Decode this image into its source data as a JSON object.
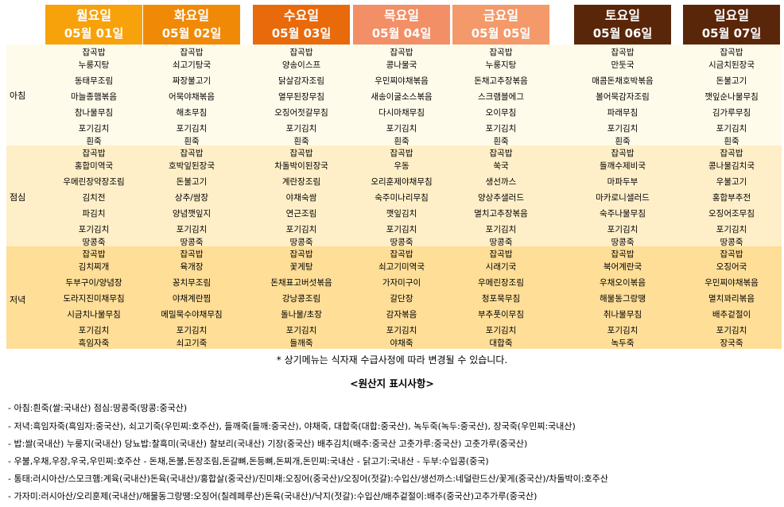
{
  "days": [
    {
      "day": "월요일",
      "date": "05월 01일",
      "header_bg": "#F7A20B"
    },
    {
      "day": "화요일",
      "date": "05월 02일",
      "header_bg": "#F08A06"
    },
    {
      "day": "수요일",
      "date": "05월 03일",
      "header_bg": "#E96A0A"
    },
    {
      "day": "목요일",
      "date": "05월 04일",
      "header_bg": "#F38F66"
    },
    {
      "day": "금요일",
      "date": "05월 05일",
      "header_bg": "#F4996A"
    },
    {
      "day": "토요일",
      "date": "05월 06일",
      "header_bg": "#5A260A"
    },
    {
      "day": "일요일",
      "date": "05월 07일",
      "header_bg": "#5A260A"
    }
  ],
  "meals": [
    {
      "label": "아침",
      "bg": "#FFFBEA",
      "items": [
        [
          "잡곡밥",
          "누룽지탕",
          "동태무조림",
          "마늘종햄볶음",
          "참나물무침",
          "포기김치",
          "흰죽"
        ],
        [
          "잡곡밥",
          "쇠고기탕국",
          "짜장불고기",
          "어묵야채볶음",
          "해초무침",
          "포기김치",
          "흰죽"
        ],
        [
          "잡곡밥",
          "양송이스프",
          "닭살감자조림",
          "열무된장무침",
          "오징어젓갈무침",
          "포기김치",
          "흰죽"
        ],
        [
          "잡곡밥",
          "콩나물국",
          "우민찌야채볶음",
          "새송이굴소스볶음",
          "다시마채무침",
          "포기김치",
          "흰죽"
        ],
        [
          "잡곡밥",
          "누룽지탕",
          "돈채고추장볶음",
          "스크램블에그",
          "오이무침",
          "포기김치",
          "흰죽"
        ],
        [
          "잡곡밥",
          "만둣국",
          "매콤돈채호박볶음",
          "볼어묵감자조림",
          "파래무침",
          "포기김치",
          "흰죽"
        ],
        [
          "잡곡밥",
          "시금치된장국",
          "돈불고기",
          "깻잎순나물무침",
          "김가루무침",
          "포기김치",
          "흰죽"
        ]
      ]
    },
    {
      "label": "점심",
      "bg": "#FFEFC8",
      "items": [
        [
          "잡곡밥",
          "홍합미역국",
          "우메린장약장조림",
          "김치전",
          "파김치",
          "포기김치",
          "땅콩죽"
        ],
        [
          "잡곡밥",
          "호박잎된장국",
          "돈불고기",
          "상추/쌈장",
          "양념깻잎지",
          "포기김치",
          "땅콩죽"
        ],
        [
          "잡곡밥",
          "차돌박이된장국",
          "계란장조림",
          "야채숙쌈",
          "연근조림",
          "포기김치",
          "땅콩죽"
        ],
        [
          "잡곡밥",
          "우동",
          "오리훈제야채무침",
          "숙주미나리무침",
          "깻잎김치",
          "포기김치",
          "땅콩죽"
        ],
        [
          "잡곡밥",
          "쑥국",
          "생선까스",
          "양상추샐러드",
          "멸치고추장볶음",
          "포기김치",
          "땅콩죽"
        ],
        [
          "잡곡밥",
          "들깨수제비국",
          "마파두부",
          "마카로니샐러드",
          "숙주나물무침",
          "포기김치",
          "땅콩죽"
        ],
        [
          "잡곡밥",
          "콩나물김치국",
          "우불고기",
          "홍합부추전",
          "오징어조무침",
          "포기김치",
          "땅콩죽"
        ]
      ]
    },
    {
      "label": "저녁",
      "bg": "#FFDE98",
      "items": [
        [
          "잡곡밥",
          "김치찌개",
          "두부구이/양념장",
          "도라지진미채무침",
          "시금치나물무침",
          "포기김치",
          "흑임자죽"
        ],
        [
          "잡곡밥",
          "육개장",
          "꽁치무조림",
          "야채계란찜",
          "메밀묵수야채무침",
          "포기김치",
          "쇠고기죽"
        ],
        [
          "잡곡밥",
          "꽃게탕",
          "돈채표고버섯볶음",
          "강낭콩조림",
          "돌나물/초장",
          "포기김치",
          "들깨죽"
        ],
        [
          "잡곡밥",
          "쇠고기미역국",
          "가자미구이",
          "갈단장",
          "감자볶음",
          "포기김치",
          "야채죽"
        ],
        [
          "잡곡밥",
          "시래기국",
          "우메린장조림",
          "청포묵무침",
          "부추풋이무침",
          "포기김치",
          "대합죽"
        ],
        [
          "잡곡밥",
          "북어계란국",
          "우채오이볶음",
          "해물동그랑땡",
          "취나물무침",
          "포기김치",
          "녹두죽"
        ],
        [
          "잡곡밥",
          "오징어국",
          "우민찌야채볶음",
          "멸치꽈리볶음",
          "배추겉절이",
          "포기김치",
          "장국죽"
        ]
      ]
    }
  ],
  "note": "* 상기메뉴는 식자재 수급사정에 따라 변경될 수 있습니다.",
  "origin_title": "<원산지 표시사항>",
  "origin_lines": [
    "- 아침:흰죽(쌀:국내산) 점심:땅콩죽(땅콩:중국산)",
    "- 저녁:흑임자죽(흑임자:중국산), 쇠고기죽(우민찌:호주산), 들깨죽(들깨:중국산), 야채죽, 대합죽(대합:중국산), 녹두죽(녹두:중국산), 장국죽(우민찌:국내산)",
    "- 밥:쌀(국내산) 누룽지(국내산) 당뇨밥:찰흑미(국내산) 찰보리(국내산) 기장(중국산) 배추김치(배추:중국산 고춧가루:중국산) 고춧가루(중국산)",
    "- 우불,우채,우장,우국,우민찌:호주산  -  돈채,돈불,돈장조림,돈갈뼈,돈등뼈,돈찌개,돈민찌:국내산  -  닭고기:국내산  -  두부:수입콩(중국)",
    "- 통태:러시아산/스모크햄:계육(국내산)돈육(국내산)/홍합살(중국산)/진미채:오징어(중국산)/오징어(젓갈):수입산/생선까스:네덜란드산/꽃게(중국산)/차돌박이:호주산",
    "- 가자미:러시아산/오리훈제(국내산)/해물동그랑땡:오징어(칠레페루산)돈육(국내산)/낙지(젓갈):수입산/배추겉절이:배추(중국산)고추가루(중국산)"
  ]
}
